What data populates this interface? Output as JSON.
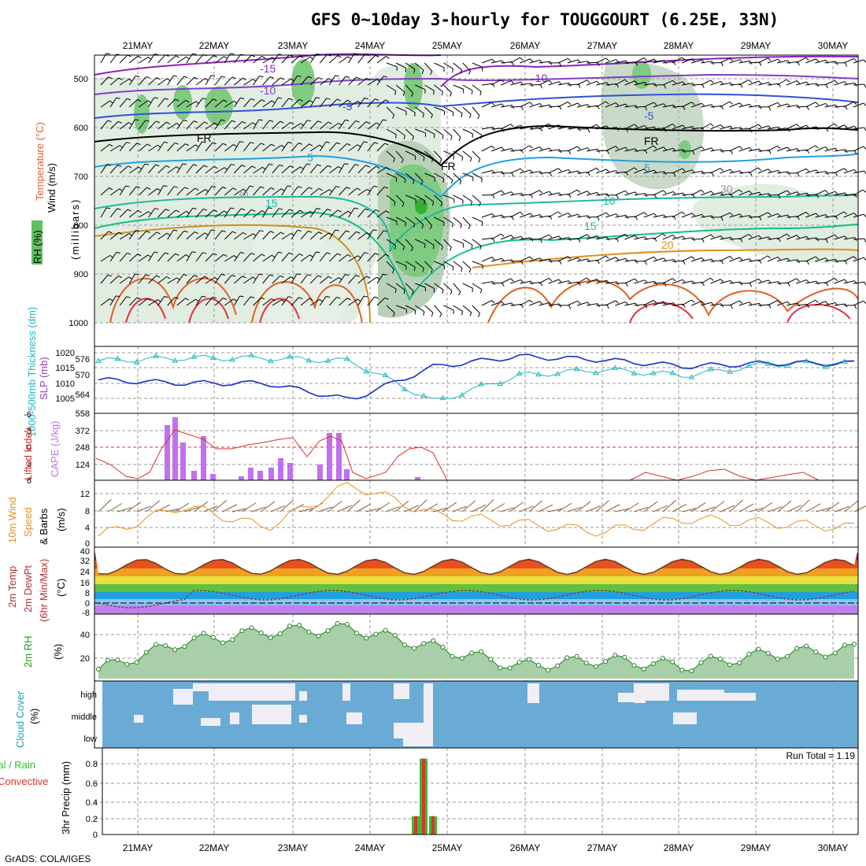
{
  "title": "GFS 0~10day 3-hourly for TOUGGOURT (6.25E, 33N)",
  "dates": [
    "21MAY",
    "22MAY",
    "23MAY",
    "24MAY",
    "25MAY",
    "26MAY",
    "27MAY",
    "28MAY",
    "29MAY",
    "30MAY"
  ],
  "footer": "GrADS: COLA/IGES",
  "colors": {
    "rh": "#5fc15f",
    "temperature": "#e07020",
    "wind": "#000000",
    "thickness": "#20b8c0",
    "slp": "#1a30c8",
    "lifted": "#d83030",
    "cape": "#c070f0",
    "wind10": "#e89020",
    "temp2m": "#000000",
    "dewpt": "#d83030",
    "rh2m": "#20a020",
    "cloud": "#5ba3d0",
    "cloudclear": "#f0f0f4",
    "precip_total": "#30c030",
    "precip_conv": "#e03030"
  },
  "panels": {
    "upper": {
      "ylabels": {
        "wind": "Wind (m/s)",
        "temp": "Temperature (°C)",
        "rh": "RH (%)",
        "unit": "(millibars)"
      },
      "yticks": [
        "500",
        "600",
        "700",
        "800",
        "900",
        "1000"
      ],
      "contour_labels": [
        "-15",
        "-10",
        "-5",
        "FR",
        "5",
        "10",
        "15",
        "20",
        "30",
        "-10",
        "-5",
        "FR",
        "5",
        "10",
        "15",
        "20",
        "30",
        "-15"
      ]
    },
    "slp": {
      "ylabels": {
        "thk": "1000-500mb Thickness (dm)",
        "slp": "SLP (mb)"
      },
      "left_ticks": [
        "576",
        "570",
        "564",
        "558"
      ],
      "right_ticks": [
        "1020",
        "1015",
        "1010",
        "1005"
      ]
    },
    "li": {
      "ylabels": {
        "li": "Lifted Index",
        "cape": "CAPE (J/kg)"
      },
      "left_ticks": [
        "-6",
        "-3",
        "0",
        "3",
        "6"
      ],
      "right_ticks": [
        "372",
        "248",
        "124"
      ]
    },
    "wind10": {
      "ylabels": {
        "a": "10m Wind",
        "b": "Speed",
        "c": "& Barbs",
        "unit": "(m/s)"
      },
      "ticks": [
        "12",
        "8",
        "4",
        "0"
      ]
    },
    "temp2m": {
      "ylabels": {
        "a": "2m Temp",
        "b": "2m DewPt",
        "c": "(6hr Min/Max)",
        "unit": "(°C)"
      },
      "ticks": [
        "40",
        "32",
        "24",
        "16",
        "8",
        "0",
        "-8"
      ]
    },
    "rh2m": {
      "ylabels": {
        "a": "2m RH",
        "unit": "(%)"
      },
      "ticks": [
        "40",
        "20"
      ]
    },
    "cloud": {
      "ylabels": {
        "a": "Cloud Cover",
        "unit": "(%)"
      },
      "levels": [
        "high",
        "middle",
        "low"
      ]
    },
    "precip": {
      "ylabels": {
        "a": "3hr Precip (mm)",
        "total": "Total / Rain",
        "conv": "Convective"
      },
      "run_total": "Run Total = 1.19",
      "ticks": [
        "0.8",
        "0.6",
        "0.4",
        "0.2",
        "0"
      ]
    }
  },
  "chart_data": [
    {
      "type": "line",
      "name_panel": "SLP and thickness",
      "x": [
        "21MAY",
        "22MAY",
        "23MAY",
        "24MAY",
        "25MAY",
        "26MAY",
        "27MAY",
        "28MAY",
        "29MAY",
        "30MAY"
      ],
      "series": [
        {
          "name": "SLP (mb)",
          "values": [
            1012,
            1011,
            1011,
            1006,
            1016,
            1019,
            1018,
            1016,
            1017,
            1017
          ]
        },
        {
          "name": "1000-500mb Thickness (dm)",
          "values": [
            574,
            575,
            575,
            574,
            560,
            569,
            571,
            569,
            573,
            573
          ]
        }
      ]
    },
    {
      "type": "bar",
      "name_panel": "CAPE",
      "categories": [
        "21MAY",
        "22MAY",
        "23MAY",
        "24MAY",
        "25MAY"
      ],
      "values": [
        0,
        372,
        160,
        300,
        30
      ],
      "ylim": [
        0,
        372
      ]
    },
    {
      "type": "line",
      "name_panel": "10m wind speed",
      "x": [
        "21MAY",
        "22MAY",
        "23MAY",
        "24MAY",
        "25MAY",
        "26MAY",
        "27MAY",
        "28MAY",
        "29MAY",
        "30MAY"
      ],
      "series": [
        {
          "name": "Speed",
          "values": [
            2,
            9,
            4,
            14,
            7,
            5,
            3,
            6,
            5,
            4
          ]
        }
      ],
      "ylim": [
        0,
        14
      ]
    },
    {
      "type": "area",
      "name_panel": "2m RH",
      "x": [
        "21MAY",
        "22MAY",
        "23MAY",
        "24MAY",
        "25MAY",
        "26MAY",
        "27MAY",
        "28MAY",
        "29MAY",
        "30MAY"
      ],
      "series": [
        {
          "name": "2m RH",
          "values": [
            9,
            35,
            45,
            48,
            30,
            12,
            18,
            12,
            24,
            28
          ]
        }
      ]
    },
    {
      "type": "bar",
      "name_panel": "3hr precip",
      "categories": [
        "24MAY",
        "25MAY"
      ],
      "values": [
        0.2,
        0.83
      ],
      "ylim": [
        0,
        0.9
      ]
    }
  ]
}
